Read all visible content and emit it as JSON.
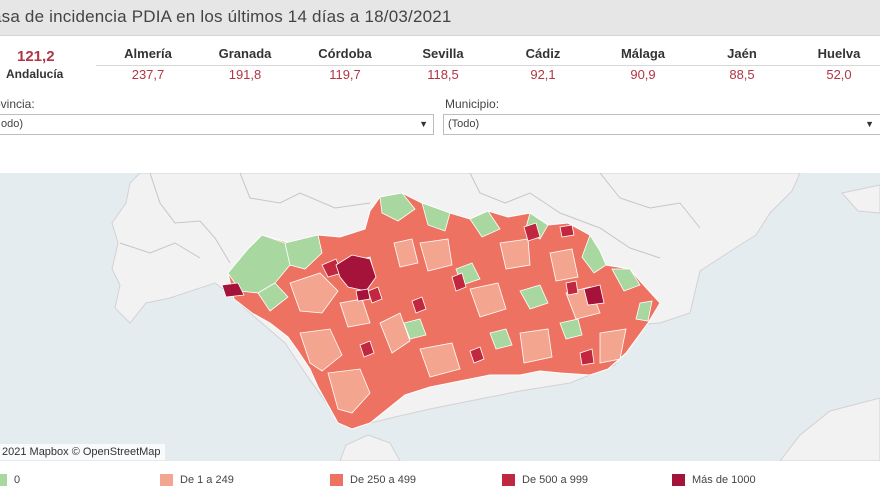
{
  "header": {
    "title": "asa de incidencia PDIA en los últimos 14 días a 18/03/2021"
  },
  "total": {
    "value": "121,2",
    "label": "Andalucía"
  },
  "provinces": [
    {
      "name": "Almería",
      "value": "237,7"
    },
    {
      "name": "Granada",
      "value": "191,8"
    },
    {
      "name": "Córdoba",
      "value": "119,7"
    },
    {
      "name": "Sevilla",
      "value": "118,5"
    },
    {
      "name": "Cádiz",
      "value": "92,1"
    },
    {
      "name": "Málaga",
      "value": "90,9"
    },
    {
      "name": "Jaén",
      "value": "88,5"
    },
    {
      "name": "Huelva",
      "value": "52,0"
    }
  ],
  "filters": {
    "provincia": {
      "label": "ovincia:",
      "value": "odo)"
    },
    "municipio": {
      "label": "Municipio:",
      "value": "(Todo)"
    }
  },
  "map": {
    "attribution": "2021 Mapbox © OpenStreetMap",
    "colors": {
      "sea": "#e5ecef",
      "land": "#f2f2f2",
      "border": "#c8c8c8",
      "zero": "#a8d8a0",
      "low": "#f4a58f",
      "mid": "#ee7262",
      "high": "#c1283f",
      "very_high": "#a5123a"
    }
  },
  "legend": [
    {
      "label": "0",
      "color": "#a8d8a0"
    },
    {
      "label": "De 1 a 249",
      "color": "#f4a58f"
    },
    {
      "label": "De 250 a 499",
      "color": "#ee7262"
    },
    {
      "label": "De 500 a 999",
      "color": "#c1283f"
    },
    {
      "label": "Más de 1000",
      "color": "#a5123a"
    }
  ]
}
